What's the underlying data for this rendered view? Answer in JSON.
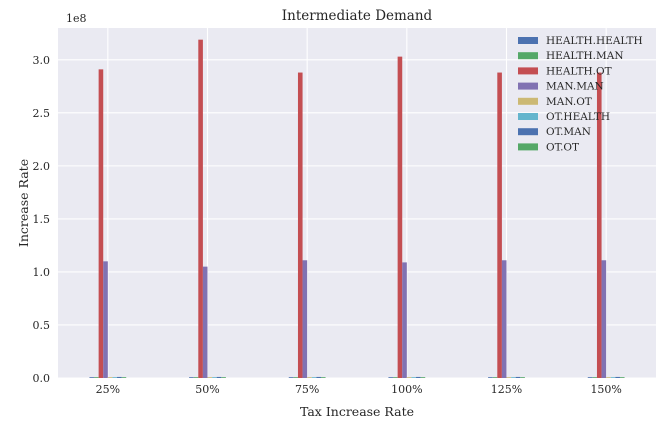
{
  "chart_data": {
    "type": "bar",
    "title": "Intermediate Demand",
    "xlabel": "Tax Increase Rate",
    "ylabel": "Increase Rate",
    "y_offset_text": "1e8",
    "y_multiplier": 100000000,
    "ylim": [
      0,
      3.3
    ],
    "yticks": [
      0.0,
      0.5,
      1.0,
      1.5,
      2.0,
      2.5,
      3.0
    ],
    "ytick_labels": [
      "0.0",
      "0.5",
      "1.0",
      "1.5",
      "2.0",
      "2.5",
      "3.0"
    ],
    "categories": [
      "25%",
      "50%",
      "75%",
      "100%",
      "125%",
      "150%"
    ],
    "grid": true,
    "legend_position": "top-right",
    "series": [
      {
        "name": "HEALTH.HEALTH",
        "color": "#4c72b0",
        "values": [
          0.002,
          0.002,
          0.002,
          0.002,
          0.002,
          0.002
        ]
      },
      {
        "name": "HEALTH.MAN",
        "color": "#55a868",
        "values": [
          0.002,
          0.002,
          0.002,
          0.002,
          0.002,
          0.002
        ]
      },
      {
        "name": "HEALTH.OT",
        "color": "#c44e52",
        "values": [
          2.91,
          3.19,
          2.88,
          3.03,
          2.88,
          2.88
        ]
      },
      {
        "name": "MAN.MAN",
        "color": "#8172b2",
        "values": [
          1.1,
          1.05,
          1.11,
          1.09,
          1.11,
          1.11
        ]
      },
      {
        "name": "MAN.OT",
        "color": "#ccb974",
        "values": [
          0.005,
          0.005,
          0.005,
          0.005,
          0.005,
          0.005
        ]
      },
      {
        "name": "OT.HEALTH",
        "color": "#64b5cd",
        "values": [
          0.002,
          0.002,
          0.002,
          0.002,
          0.002,
          0.002
        ]
      },
      {
        "name": "OT.MAN",
        "color": "#4c72b0",
        "values": [
          0.01,
          0.01,
          0.01,
          0.01,
          0.01,
          0.01
        ]
      },
      {
        "name": "OT.OT",
        "color": "#55a868",
        "values": [
          0.002,
          0.002,
          0.002,
          0.002,
          0.002,
          0.002
        ]
      }
    ]
  }
}
